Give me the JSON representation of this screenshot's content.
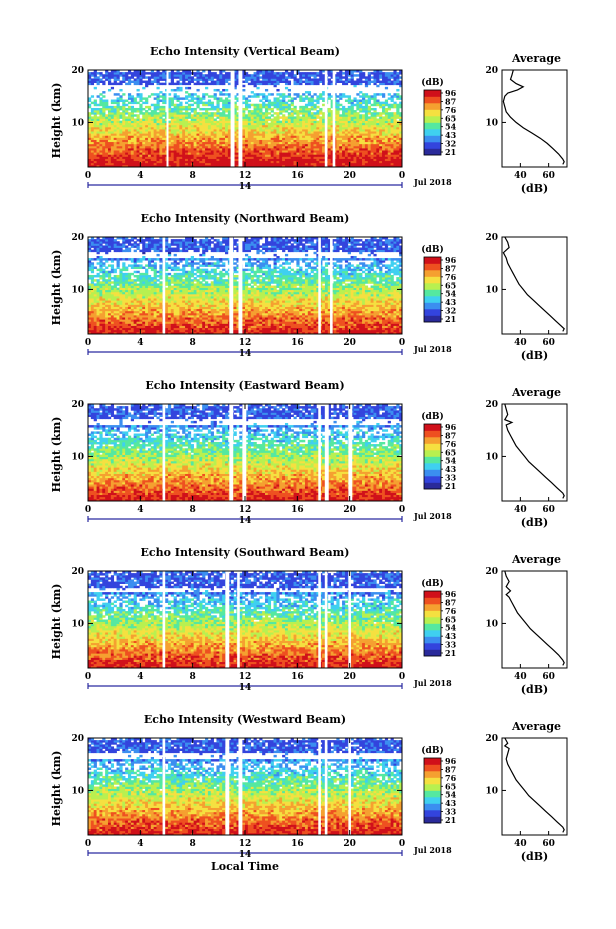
{
  "chart_data": [
    {
      "type": "heatmap",
      "title": "Echo Intensity (Vertical Beam)",
      "ylabel": "Height (km)",
      "xlabel": "",
      "x_ticks": [
        "0",
        "4",
        "8",
        "12",
        "16",
        "20",
        "0"
      ],
      "y_ticks": [
        "20",
        "10"
      ],
      "xlim": [
        0,
        24
      ],
      "ylim": [
        1.5,
        20
      ],
      "gaps": [
        [
          6.0,
          6.1
        ],
        [
          10.9,
          11.2
        ],
        [
          11.5,
          11.8
        ],
        [
          18.1,
          18.3
        ],
        [
          18.7,
          18.9
        ]
      ],
      "white_band_km": [
        15.5,
        17.2
      ],
      "colorbar_unit": "(dB)",
      "colorbar_ticks": [
        "96",
        "87",
        "76",
        "65",
        "54",
        "43",
        "32",
        "21"
      ],
      "date_label": "Jul 2018",
      "day_label": "14",
      "profile": {
        "title": "Average",
        "xlabel": "(dB)",
        "x_ticks": [
          "40",
          "60"
        ],
        "y_ticks": [
          "20",
          "10"
        ],
        "xlim": [
          27,
          73
        ],
        "ylim": [
          1.5,
          20
        ],
        "heights": [
          20,
          19,
          18.2,
          17.4,
          16.8,
          16.2,
          15.6,
          15,
          14,
          13,
          12,
          11,
          10,
          9,
          8,
          7,
          6,
          5,
          4,
          3,
          2.5,
          2
        ],
        "values": [
          35,
          34,
          33,
          37,
          42,
          38,
          31,
          29,
          28,
          29,
          30,
          33,
          37,
          42,
          48,
          54,
          59,
          63,
          67,
          70,
          71,
          70
        ]
      }
    },
    {
      "type": "heatmap",
      "title": "Echo Intensity (Northward Beam)",
      "ylabel": "Height (km)",
      "xlabel": "",
      "x_ticks": [
        "0",
        "4",
        "8",
        "12",
        "16",
        "20",
        "0"
      ],
      "y_ticks": [
        "20",
        "10"
      ],
      "xlim": [
        0,
        24
      ],
      "ylim": [
        1.5,
        20
      ],
      "gaps": [
        [
          5.7,
          5.9
        ],
        [
          10.8,
          11.1
        ],
        [
          11.5,
          11.8
        ],
        [
          17.6,
          17.8
        ],
        [
          18.5,
          18.7
        ]
      ],
      "white_band_km": [
        16.0,
        17.0
      ],
      "colorbar_unit": "(dB)",
      "colorbar_ticks": [
        "96",
        "87",
        "76",
        "65",
        "54",
        "43",
        "32",
        "21"
      ],
      "date_label": "Jul 2018",
      "day_label": "14",
      "profile": {
        "title": "",
        "xlabel": "(dB)",
        "x_ticks": [
          "40",
          "60"
        ],
        "y_ticks": [
          "20",
          "10"
        ],
        "xlim": [
          27,
          73
        ],
        "ylim": [
          1.5,
          20
        ],
        "heights": [
          20,
          19,
          18,
          17,
          16,
          15,
          14,
          13,
          12,
          11,
          10,
          9,
          8,
          7,
          6,
          5,
          4,
          3,
          2.5,
          2
        ],
        "values": [
          29,
          31,
          32,
          28,
          30,
          31,
          33,
          35,
          37,
          39,
          42,
          45,
          49,
          53,
          57,
          61,
          65,
          69,
          71,
          70
        ]
      }
    },
    {
      "type": "heatmap",
      "title": "Echo Intensity (Eastward Beam)",
      "ylabel": "Height (km)",
      "xlabel": "",
      "x_ticks": [
        "0",
        "4",
        "8",
        "12",
        "16",
        "20",
        "0"
      ],
      "y_ticks": [
        "20",
        "10"
      ],
      "xlim": [
        0,
        24
      ],
      "ylim": [
        1.5,
        20
      ],
      "gaps": [
        [
          5.7,
          5.9
        ],
        [
          10.8,
          11.1
        ],
        [
          11.8,
          12.1
        ],
        [
          17.6,
          17.8
        ],
        [
          18.1,
          18.4
        ],
        [
          19.9,
          20.2
        ]
      ],
      "white_band_km": [
        16.0,
        17.0
      ],
      "colorbar_unit": "(dB)",
      "colorbar_ticks": [
        "96",
        "87",
        "76",
        "65",
        "54",
        "43",
        "33",
        "21"
      ],
      "date_label": "Jul 2018",
      "day_label": "14",
      "profile": {
        "title": "Average",
        "xlabel": "(dB)",
        "x_ticks": [
          "40",
          "60"
        ],
        "y_ticks": [
          "20",
          "10"
        ],
        "xlim": [
          27,
          73
        ],
        "ylim": [
          1.5,
          20
        ],
        "heights": [
          20,
          19,
          18,
          17,
          16.5,
          16,
          15,
          14,
          13,
          12,
          11,
          10,
          9,
          8,
          7,
          6,
          5,
          4,
          3,
          2.5,
          2
        ],
        "values": [
          29,
          30,
          31,
          29,
          34,
          30,
          31,
          33,
          35,
          37,
          40,
          43,
          46,
          50,
          54,
          58,
          62,
          66,
          70,
          71,
          70
        ]
      }
    },
    {
      "type": "heatmap",
      "title": "Echo Intensity (Southward Beam)",
      "ylabel": "Height (km)",
      "xlabel": "",
      "x_ticks": [
        "0",
        "4",
        "8",
        "12",
        "16",
        "20",
        "0"
      ],
      "y_ticks": [
        "20",
        "10"
      ],
      "xlim": [
        0,
        24
      ],
      "ylim": [
        1.5,
        20
      ],
      "gaps": [
        [
          5.7,
          5.9
        ],
        [
          10.5,
          10.8
        ],
        [
          11.4,
          11.6
        ],
        [
          17.6,
          17.8
        ],
        [
          18.1,
          18.3
        ],
        [
          19.9,
          20.1
        ]
      ],
      "white_band_km": [
        15.8,
        16.6
      ],
      "colorbar_unit": "(dB)",
      "colorbar_ticks": [
        "96",
        "87",
        "76",
        "65",
        "54",
        "43",
        "33",
        "21"
      ],
      "date_label": "Jul 2018",
      "day_label": "14",
      "profile": {
        "title": "Average",
        "xlabel": "(dB)",
        "x_ticks": [
          "40",
          "60"
        ],
        "y_ticks": [
          "20",
          "10"
        ],
        "xlim": [
          27,
          73
        ],
        "ylim": [
          1.5,
          20
        ],
        "heights": [
          20,
          19,
          18,
          17,
          16.2,
          15.5,
          15,
          14,
          13,
          12,
          11,
          10,
          9,
          8,
          7,
          6,
          5,
          4,
          3,
          2.5,
          2
        ],
        "values": [
          29,
          30,
          32,
          30,
          33,
          30,
          32,
          34,
          36,
          38,
          41,
          44,
          47,
          51,
          55,
          59,
          63,
          67,
          70,
          71,
          70
        ]
      }
    },
    {
      "type": "heatmap",
      "title": "Echo Intensity (Westward Beam)",
      "ylabel": "Height (km)",
      "xlabel": "Local Time",
      "x_ticks": [
        "0",
        "4",
        "8",
        "12",
        "16",
        "20",
        "0"
      ],
      "y_ticks": [
        "20",
        "10"
      ],
      "xlim": [
        0,
        24
      ],
      "ylim": [
        1.5,
        20
      ],
      "gaps": [
        [
          5.7,
          5.9
        ],
        [
          10.5,
          10.8
        ],
        [
          11.5,
          11.8
        ],
        [
          17.6,
          17.8
        ],
        [
          18.1,
          18.3
        ],
        [
          19.9,
          20.1
        ]
      ],
      "white_band_km": [
        16.0,
        17.0
      ],
      "colorbar_unit": "(dB)",
      "colorbar_ticks": [
        "96",
        "87",
        "76",
        "65",
        "54",
        "43",
        "33",
        "21"
      ],
      "date_label": "Jul 2018",
      "day_label": "14",
      "profile": {
        "title": "Average",
        "xlabel": "(dB)",
        "x_ticks": [
          "40",
          "60"
        ],
        "y_ticks": [
          "20",
          "10"
        ],
        "xlim": [
          27,
          73
        ],
        "ylim": [
          1.5,
          20
        ],
        "heights": [
          20,
          19,
          18.5,
          18,
          17,
          16,
          15,
          14,
          13,
          12,
          11,
          10,
          9,
          8,
          7,
          6,
          5,
          4,
          3,
          2.5,
          2
        ],
        "values": [
          29,
          31,
          29,
          32,
          31,
          30,
          31,
          33,
          35,
          37,
          40,
          43,
          46,
          50,
          54,
          58,
          62,
          66,
          70,
          71,
          70
        ]
      }
    }
  ],
  "colors": {
    "colormap": [
      "#2a2a9a",
      "#3344dd",
      "#3b8ef0",
      "#3fd0f0",
      "#55e8a0",
      "#b8f050",
      "#f5e040",
      "#f5a030",
      "#ee5020",
      "#d0101a"
    ]
  }
}
